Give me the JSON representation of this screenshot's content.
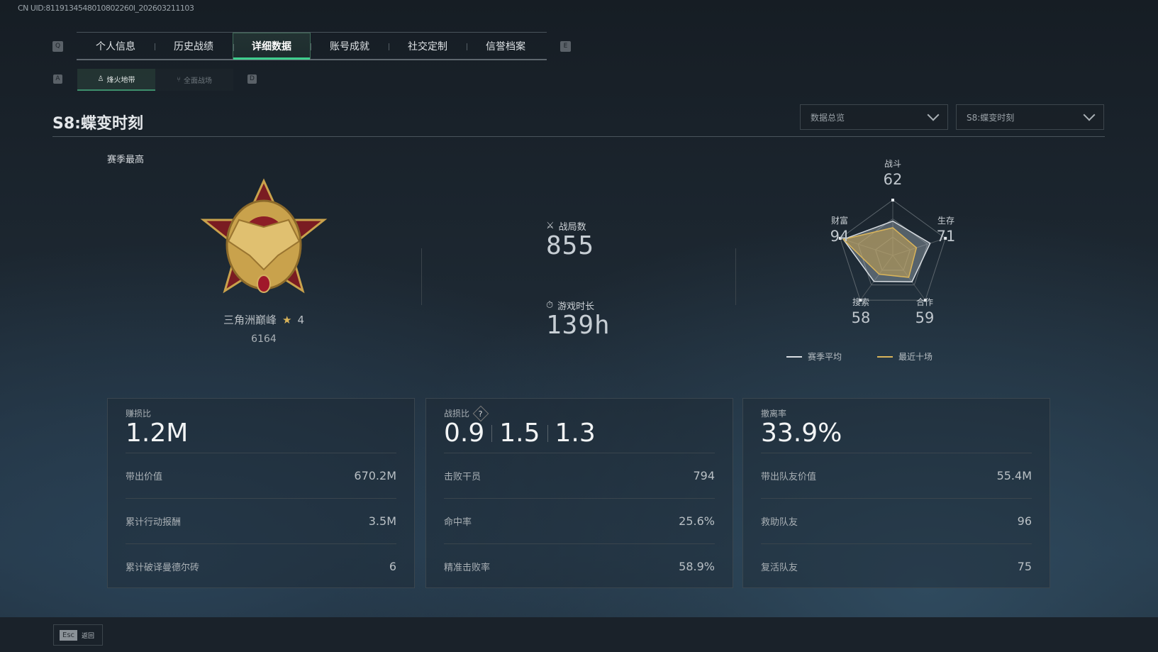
{
  "uid": "CN UID:8119134548010802260l_202603211103",
  "nav": {
    "prev_key": "Q",
    "next_key": "E",
    "tabs": [
      {
        "label": "个人信息"
      },
      {
        "label": "历史战绩"
      },
      {
        "label": "详细数据",
        "active": true
      },
      {
        "label": "账号成就"
      },
      {
        "label": "社交定制"
      },
      {
        "label": "信誉档案"
      }
    ]
  },
  "subnav": {
    "prev_key": "A",
    "next_key": "D",
    "tabs": [
      {
        "label": "烽火地带",
        "icon": "beacon-icon",
        "active": true
      },
      {
        "label": "全面战场",
        "icon": "warfare-icon"
      }
    ]
  },
  "page_title": "S8:蝶变时刻",
  "filters": {
    "view": "数据总览",
    "season": "S8:蝶变时刻"
  },
  "rank": {
    "heading": "赛季最高",
    "name": "三角洲巅峰",
    "stars": "4",
    "score": "6164"
  },
  "summary": {
    "matches_label": "战局数",
    "matches": "855",
    "playtime_label": "游戏时长",
    "playtime": "139h"
  },
  "chart_data": {
    "type": "radar",
    "axes": [
      "战斗",
      "生存",
      "合作",
      "搜索",
      "财富"
    ],
    "axis_values": [
      "62",
      "71",
      "59",
      "58",
      "94"
    ],
    "range": [
      0,
      100
    ],
    "series": [
      {
        "name": "赛季平均",
        "values": [
          62,
          71,
          59,
          58,
          94
        ],
        "color": "#d8dde2"
      },
      {
        "name": "最近十场",
        "values": [
          50,
          45,
          49,
          42,
          94
        ],
        "color": "#d9b45a"
      }
    ]
  },
  "cards": [
    {
      "label": "赚损比",
      "big": [
        "1.2M"
      ],
      "rows": [
        {
          "k": "带出价值",
          "v": "670.2M"
        },
        {
          "k": "累计行动报酬",
          "v": "3.5M"
        },
        {
          "k": "累计破译曼德尔砖",
          "v": "6"
        }
      ]
    },
    {
      "label": "战损比",
      "help": "?",
      "big": [
        "0.9",
        "1.5",
        "1.3"
      ],
      "rows": [
        {
          "k": "击败干员",
          "v": "794"
        },
        {
          "k": "命中率",
          "v": "25.6%"
        },
        {
          "k": "精准击败率",
          "v": "58.9%"
        }
      ]
    },
    {
      "label": "撤离率",
      "big": [
        "33.9%"
      ],
      "rows": [
        {
          "k": "带出队友价值",
          "v": "55.4M"
        },
        {
          "k": "救助队友",
          "v": "96"
        },
        {
          "k": "复活队友",
          "v": "75"
        }
      ]
    }
  ],
  "footer": {
    "esc_key": "Esc",
    "back_label": "返回"
  }
}
